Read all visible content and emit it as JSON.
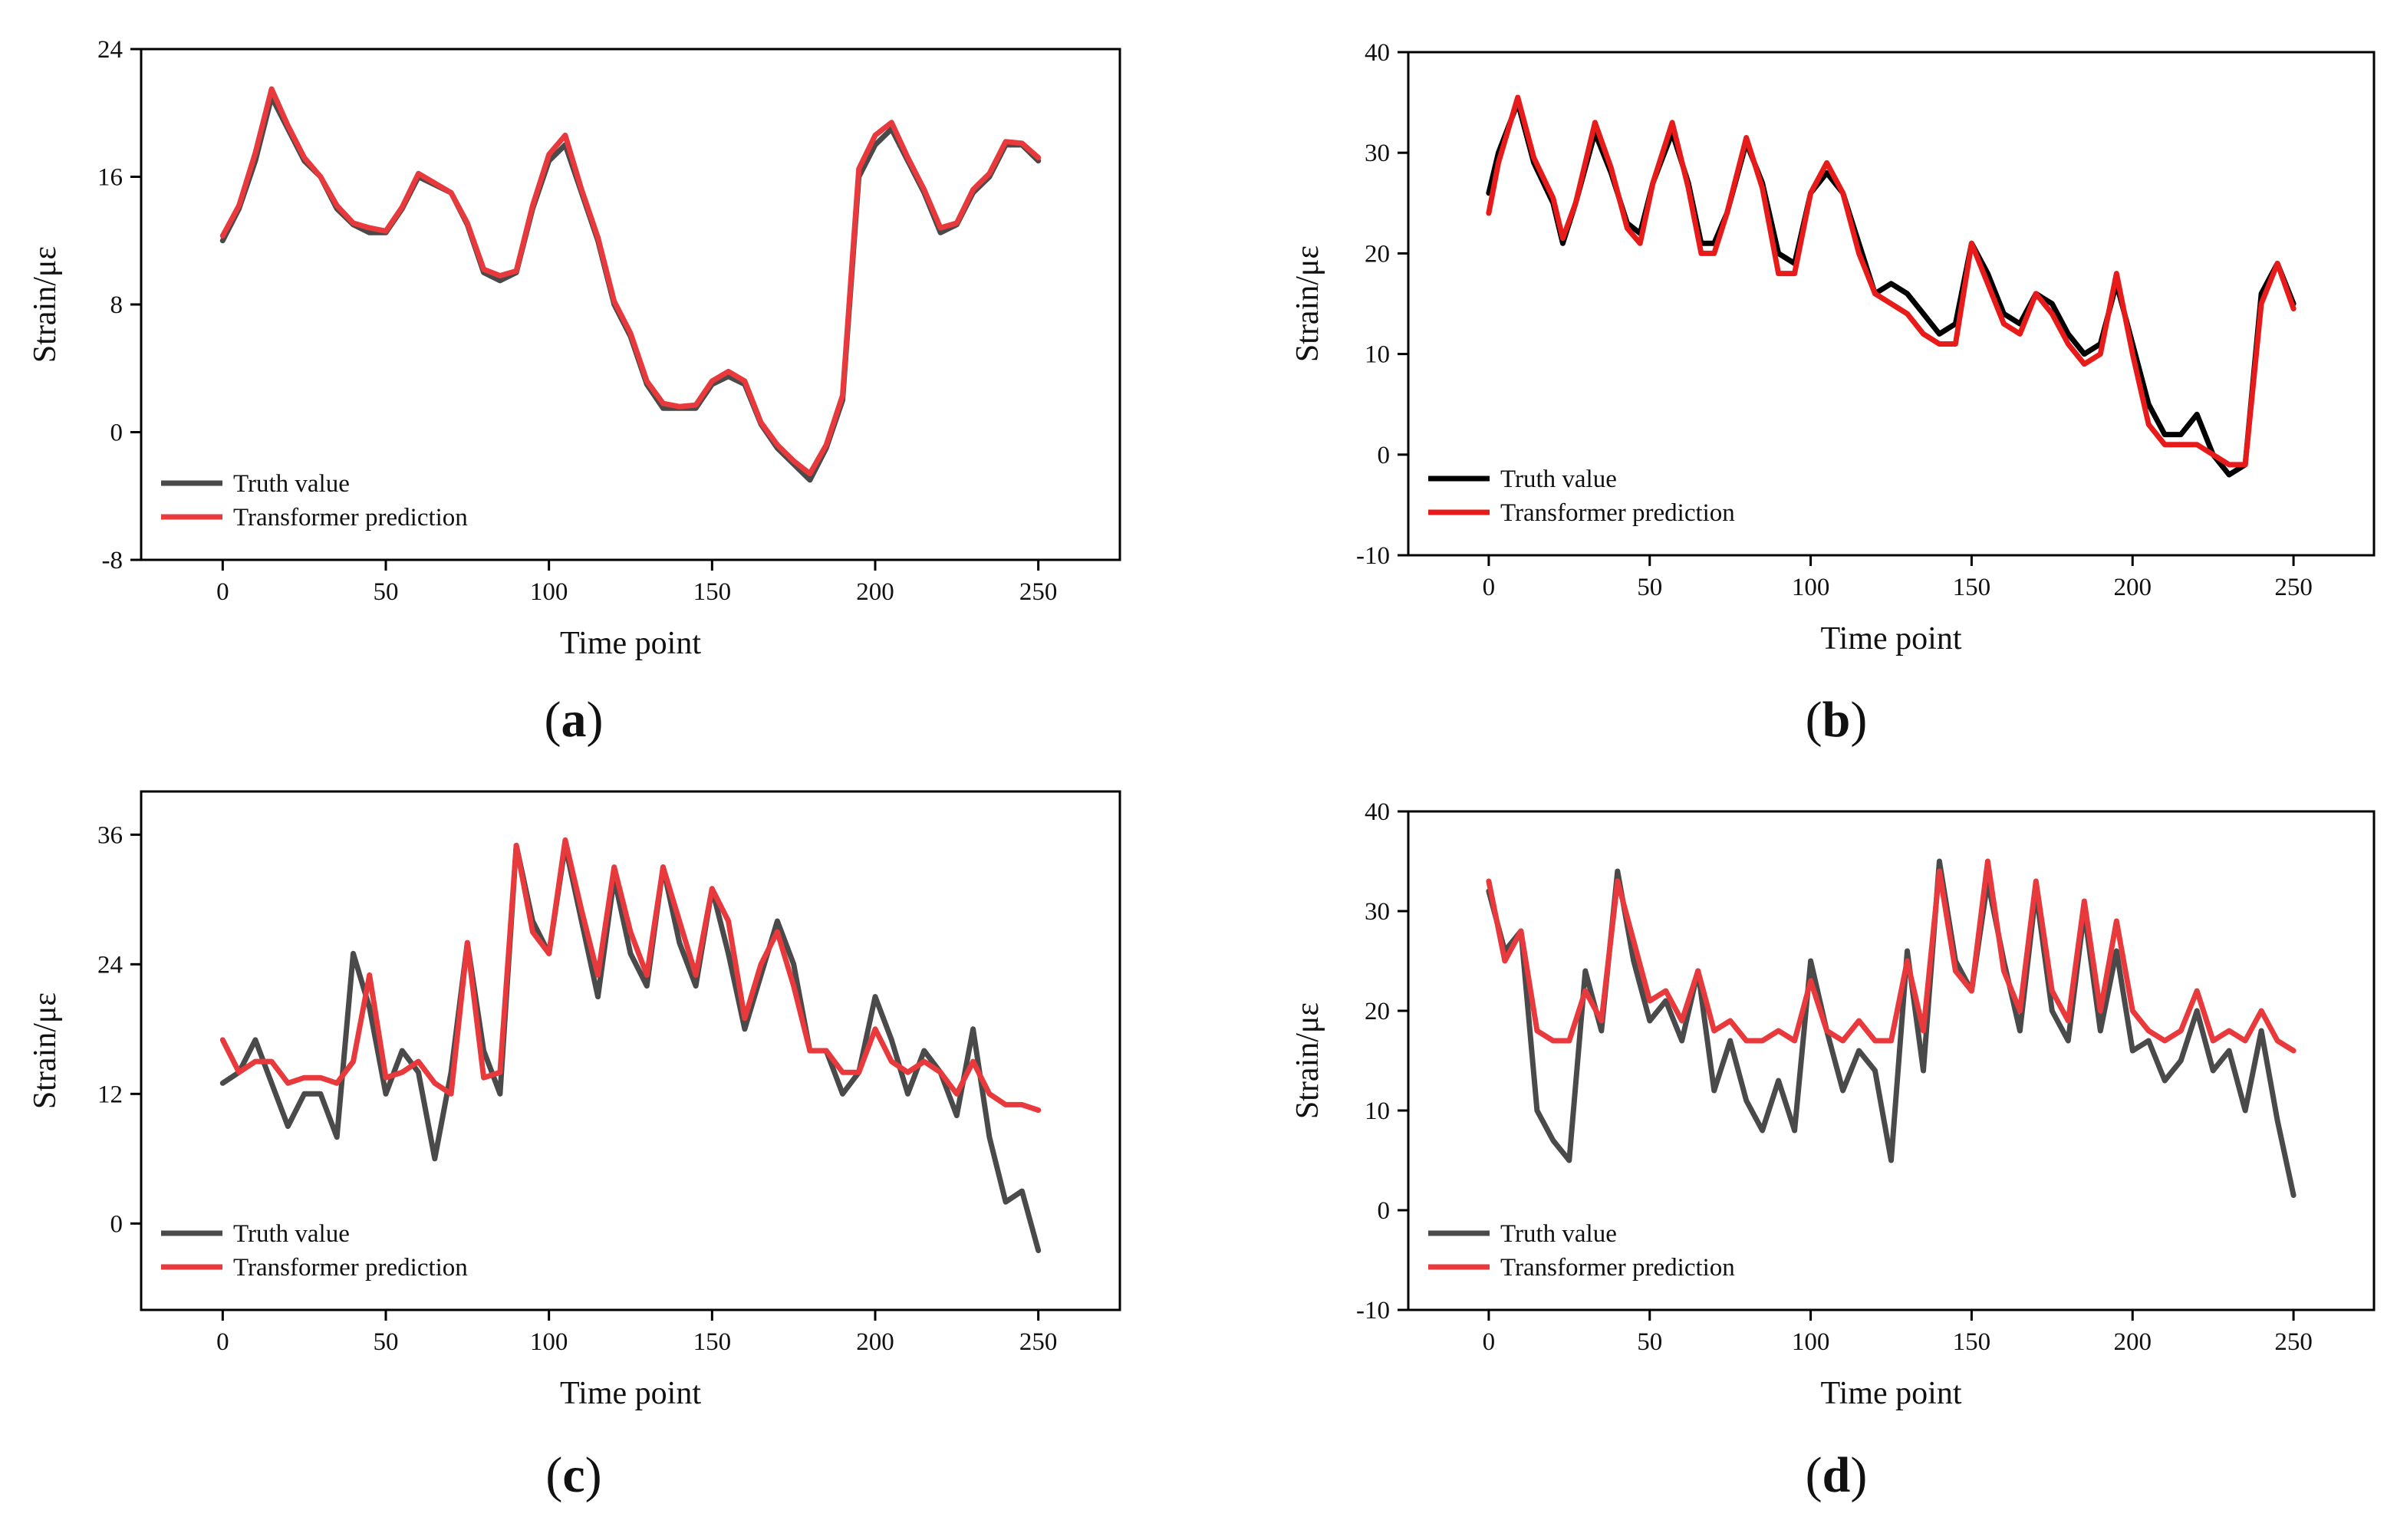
{
  "panel_labels": [
    "a",
    "b",
    "c",
    "d"
  ],
  "chart_data": [
    {
      "id": "a",
      "type": "line",
      "xlabel": "Time point",
      "ylabel": "Strain/με",
      "xlim": [
        -25,
        275
      ],
      "ylim": [
        -8,
        24
      ],
      "xticks": [
        0,
        50,
        100,
        150,
        200,
        250
      ],
      "yticks": [
        -8,
        0,
        8,
        16,
        24
      ],
      "legend": "bottom-left",
      "series": [
        {
          "name": "Truth value",
          "color": "#4a4a4a",
          "x": [
            0,
            5,
            10,
            15,
            20,
            25,
            30,
            35,
            40,
            45,
            50,
            55,
            60,
            65,
            70,
            75,
            80,
            85,
            90,
            95,
            100,
            105,
            110,
            115,
            120,
            125,
            130,
            135,
            140,
            145,
            150,
            155,
            160,
            165,
            170,
            175,
            180,
            185,
            190,
            195,
            200,
            205,
            210,
            215,
            220,
            225,
            230,
            235,
            240,
            245,
            250
          ],
          "y": [
            12,
            14,
            17,
            21,
            19,
            17,
            16,
            14,
            13,
            12.5,
            12.5,
            14,
            16,
            15.5,
            15,
            13,
            10,
            9.5,
            10,
            14,
            17,
            18,
            15,
            12,
            8,
            6,
            3,
            1.5,
            1.5,
            1.5,
            3,
            3.5,
            3,
            0.5,
            -1,
            -2,
            -3,
            -1,
            2,
            16,
            18,
            19,
            17,
            15,
            12.5,
            13,
            15,
            16,
            18,
            18,
            17
          ]
        },
        {
          "name": "Transformer prediction",
          "color": "#e8393c",
          "x": [
            0,
            5,
            10,
            15,
            20,
            25,
            30,
            35,
            40,
            45,
            50,
            55,
            60,
            65,
            70,
            75,
            80,
            85,
            90,
            95,
            100,
            105,
            110,
            115,
            120,
            125,
            130,
            135,
            140,
            145,
            150,
            155,
            160,
            165,
            170,
            175,
            180,
            185,
            190,
            195,
            200,
            205,
            210,
            215,
            220,
            225,
            230,
            235,
            240,
            245,
            250
          ],
          "y": [
            12.3,
            14.2,
            17.5,
            21.5,
            19.2,
            17.2,
            16,
            14.2,
            13.1,
            12.8,
            12.6,
            14.1,
            16.2,
            15.6,
            15,
            13.1,
            10.2,
            9.8,
            10.1,
            14.2,
            17.4,
            18.6,
            15.2,
            12.2,
            8.2,
            6.2,
            3.2,
            1.8,
            1.6,
            1.7,
            3.2,
            3.8,
            3.2,
            0.6,
            -0.8,
            -1.8,
            -2.6,
            -0.8,
            2.3,
            16.5,
            18.6,
            19.4,
            17.2,
            15.2,
            12.8,
            13.1,
            15.2,
            16.2,
            18.2,
            18.1,
            17.2
          ]
        }
      ]
    },
    {
      "id": "b",
      "type": "line",
      "xlabel": "Time point",
      "ylabel": "Strain/με",
      "xlim": [
        -25,
        275
      ],
      "ylim": [
        -10,
        40
      ],
      "xticks": [
        0,
        50,
        100,
        150,
        200,
        250
      ],
      "yticks": [
        -10,
        0,
        10,
        20,
        30,
        40
      ],
      "legend": "bottom-left",
      "series": [
        {
          "name": "Truth value",
          "color": "#000000",
          "x": [
            0,
            3,
            9,
            14,
            20,
            23,
            27,
            33,
            38,
            43,
            47,
            51,
            57,
            62,
            66,
            70,
            74,
            80,
            85,
            90,
            95,
            100,
            105,
            110,
            115,
            120,
            125,
            130,
            135,
            140,
            145,
            150,
            155,
            160,
            165,
            170,
            175,
            180,
            185,
            190,
            195,
            200,
            205,
            210,
            215,
            220,
            225,
            230,
            235,
            240,
            245,
            250
          ],
          "y": [
            26,
            30,
            35,
            29,
            25,
            21,
            25,
            32,
            28,
            23,
            22,
            27,
            32,
            27,
            21,
            21,
            24,
            31,
            27,
            20,
            19,
            26,
            28,
            26,
            21,
            16,
            17,
            16,
            14,
            12,
            13,
            21,
            18,
            14,
            13,
            16,
            15,
            12,
            10,
            11,
            17,
            11,
            5,
            2,
            2,
            4,
            0,
            -2,
            -1,
            16,
            19,
            15
          ]
        },
        {
          "name": "Transformer prediction",
          "color": "#e81b1b",
          "x": [
            0,
            3,
            9,
            14,
            20,
            23,
            27,
            33,
            38,
            43,
            47,
            51,
            57,
            62,
            66,
            70,
            74,
            80,
            85,
            90,
            95,
            100,
            105,
            110,
            115,
            120,
            125,
            130,
            135,
            140,
            145,
            150,
            155,
            160,
            165,
            170,
            175,
            180,
            185,
            190,
            195,
            200,
            205,
            210,
            215,
            220,
            225,
            230,
            235,
            240,
            245,
            250
          ],
          "y": [
            24,
            29,
            35.5,
            29.5,
            25.5,
            21.5,
            25,
            33,
            28.5,
            22.5,
            21,
            27,
            33,
            26.5,
            20,
            20,
            24,
            31.5,
            26.5,
            18,
            18,
            26,
            29,
            26,
            20,
            16,
            15,
            14,
            12,
            11,
            11,
            21,
            17,
            13,
            12,
            16,
            14,
            11,
            9,
            10,
            18,
            10,
            3,
            1,
            1,
            1,
            0,
            -1,
            -1,
            15,
            19,
            14.5
          ]
        }
      ]
    },
    {
      "id": "c",
      "type": "line",
      "xlabel": "Time point",
      "ylabel": "Strain/με",
      "xlim": [
        -25,
        275
      ],
      "ylim": [
        -8,
        40
      ],
      "xticks": [
        0,
        50,
        100,
        150,
        200,
        250
      ],
      "yticks": [
        0,
        12,
        24,
        36
      ],
      "legend": "bottom-left",
      "series": [
        {
          "name": "Truth value",
          "color": "#4a4a4a",
          "x": [
            0,
            5,
            10,
            15,
            20,
            25,
            30,
            35,
            40,
            45,
            50,
            55,
            60,
            65,
            70,
            75,
            80,
            85,
            90,
            95,
            100,
            105,
            110,
            115,
            120,
            125,
            130,
            135,
            140,
            145,
            150,
            155,
            160,
            165,
            170,
            175,
            180,
            185,
            190,
            195,
            200,
            205,
            210,
            215,
            220,
            225,
            230,
            235,
            240,
            245,
            250
          ],
          "y": [
            13,
            14,
            17,
            13,
            9,
            12,
            12,
            8,
            25,
            20,
            12,
            16,
            14,
            6,
            14,
            26,
            16,
            12,
            35,
            28,
            25,
            35,
            28,
            21,
            32,
            25,
            22,
            33,
            26,
            22,
            31,
            25,
            18,
            23,
            28,
            24,
            16,
            16,
            12,
            14,
            21,
            17,
            12,
            16,
            14,
            10,
            18,
            8,
            2,
            3,
            -2.5
          ]
        },
        {
          "name": "Transformer prediction",
          "color": "#e8393c",
          "x": [
            0,
            5,
            10,
            15,
            20,
            25,
            30,
            35,
            40,
            45,
            50,
            55,
            60,
            65,
            70,
            75,
            80,
            85,
            90,
            95,
            100,
            105,
            110,
            115,
            120,
            125,
            130,
            135,
            140,
            145,
            150,
            155,
            160,
            165,
            170,
            175,
            180,
            185,
            190,
            195,
            200,
            205,
            210,
            215,
            220,
            225,
            230,
            235,
            240,
            245,
            250
          ],
          "y": [
            17,
            14,
            15,
            15,
            13,
            13.5,
            13.5,
            13,
            15,
            23,
            13.5,
            14,
            15,
            13,
            12,
            26,
            13.5,
            14,
            35,
            27,
            25,
            35.5,
            29,
            23,
            33,
            27,
            23,
            33,
            28,
            23,
            31,
            28,
            19,
            24,
            27,
            22,
            16,
            16,
            14,
            14,
            18,
            15,
            14,
            15,
            14,
            12,
            15,
            12,
            11,
            11,
            10.5
          ]
        }
      ]
    },
    {
      "id": "d",
      "type": "line",
      "xlabel": "Time point",
      "ylabel": "Strain/με",
      "xlim": [
        -25,
        275
      ],
      "ylim": [
        -10,
        40
      ],
      "xticks": [
        0,
        50,
        100,
        150,
        200,
        250
      ],
      "yticks": [
        -10,
        0,
        10,
        20,
        30,
        40
      ],
      "legend": "bottom-left",
      "series": [
        {
          "name": "Truth value",
          "color": "#4a4a4a",
          "x": [
            0,
            5,
            10,
            15,
            20,
            25,
            30,
            35,
            40,
            45,
            50,
            55,
            60,
            65,
            70,
            75,
            80,
            85,
            90,
            95,
            100,
            105,
            110,
            115,
            120,
            125,
            130,
            135,
            140,
            145,
            150,
            155,
            160,
            165,
            170,
            175,
            180,
            185,
            190,
            195,
            200,
            205,
            210,
            215,
            220,
            225,
            230,
            235,
            240,
            245,
            250
          ],
          "y": [
            32,
            26,
            28,
            10,
            7,
            5,
            24,
            18,
            34,
            25,
            19,
            21,
            17,
            24,
            12,
            17,
            11,
            8,
            13,
            8,
            25,
            18,
            12,
            16,
            14,
            5,
            26,
            14,
            35,
            25,
            22,
            33,
            25,
            18,
            32,
            20,
            17,
            30,
            18,
            26,
            16,
            17,
            13,
            15,
            20,
            14,
            16,
            10,
            18,
            9,
            1.5
          ]
        },
        {
          "name": "Transformer prediction",
          "color": "#e8393c",
          "x": [
            0,
            5,
            10,
            15,
            20,
            25,
            30,
            35,
            40,
            45,
            50,
            55,
            60,
            65,
            70,
            75,
            80,
            85,
            90,
            95,
            100,
            105,
            110,
            115,
            120,
            125,
            130,
            135,
            140,
            145,
            150,
            155,
            160,
            165,
            170,
            175,
            180,
            185,
            190,
            195,
            200,
            205,
            210,
            215,
            220,
            225,
            230,
            235,
            240,
            245,
            250
          ],
          "y": [
            33,
            25,
            28,
            18,
            17,
            17,
            22,
            19,
            33,
            27,
            21,
            22,
            19,
            24,
            18,
            19,
            17,
            17,
            18,
            17,
            23,
            18,
            17,
            19,
            17,
            17,
            25,
            18,
            34,
            24,
            22,
            35,
            24,
            20,
            33,
            22,
            19,
            31,
            20,
            29,
            20,
            18,
            17,
            18,
            22,
            17,
            18,
            17,
            20,
            17,
            16
          ]
        }
      ]
    }
  ]
}
